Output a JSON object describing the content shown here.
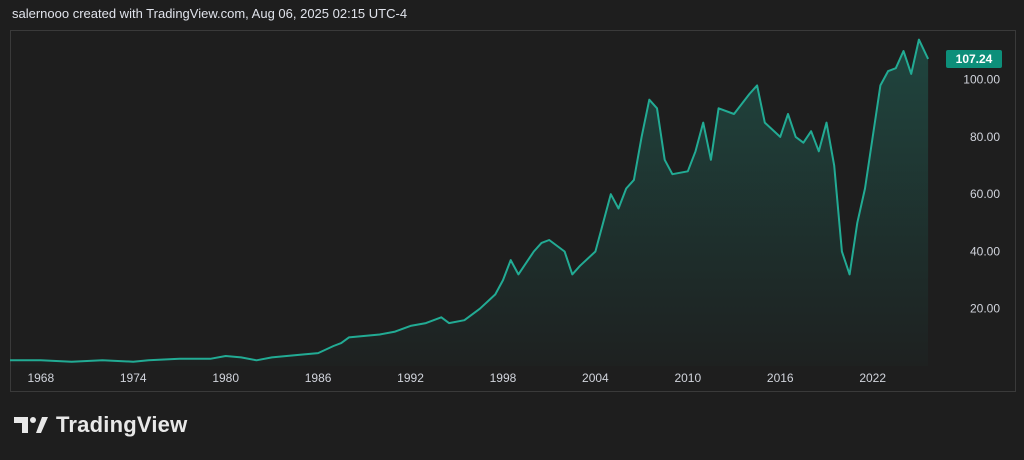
{
  "header": {
    "caption": "salernooo created with TradingView.com, Aug 06, 2025 02:15 UTC-4"
  },
  "brand": {
    "name": "TradingView"
  },
  "colors": {
    "background": "#1e1e1e",
    "line": "#22ab94",
    "badge": "#0d8f7a",
    "text": "#d1d4dc"
  },
  "chart_data": {
    "type": "area",
    "title": "",
    "xlabel": "",
    "ylabel": "",
    "xlim": [
      1966.0,
      2026.5
    ],
    "ylim": [
      0,
      117
    ],
    "y_ticks": [
      "20.00",
      "40.00",
      "60.00",
      "80.00",
      "100.00"
    ],
    "x_ticks": [
      "1968",
      "1974",
      "1980",
      "1986",
      "1992",
      "1998",
      "2004",
      "2010",
      "2016",
      "2022"
    ],
    "grid": false,
    "last_value_label": "107.24",
    "series": [
      {
        "x": [
          1966.0,
          1968.0,
          1970.0,
          1972.0,
          1974.0,
          1975.0,
          1977.0,
          1979.0,
          1980.0,
          1981.0,
          1982.0,
          1983.0,
          1985.0,
          1986.0,
          1987.0,
          1987.5,
          1988.0,
          1990.0,
          1991.0,
          1992.0,
          1993.0,
          1994.0,
          1994.5,
          1995.5,
          1996.5,
          1997.5,
          1998.0,
          1998.5,
          1999.0,
          2000.0,
          2000.5,
          2001.0,
          2002.0,
          2002.5,
          2003.0,
          2004.0,
          2005.0,
          2005.5,
          2006.0,
          2006.5,
          2007.0,
          2007.5,
          2008.0,
          2008.5,
          2009.0,
          2010.0,
          2010.5,
          2011.0,
          2011.5,
          2012.0,
          2013.0,
          2014.0,
          2014.5,
          2015.0,
          2016.0,
          2016.5,
          2017.0,
          2017.5,
          2018.0,
          2018.5,
          2019.0,
          2019.5,
          2020.0,
          2020.5,
          2021.0,
          2021.5,
          2022.0,
          2022.5,
          2023.0,
          2023.5,
          2024.0,
          2024.5,
          2025.0,
          2025.6
        ],
        "values": [
          2,
          2,
          1.5,
          2,
          1.5,
          2,
          2.5,
          2.5,
          3.5,
          3,
          2,
          3,
          4,
          4.5,
          7,
          8,
          10,
          11,
          12,
          14,
          15,
          17,
          15,
          16,
          20,
          25,
          30,
          37,
          32,
          40,
          43,
          44,
          40,
          32,
          35,
          40,
          60,
          55,
          62,
          65,
          80,
          93,
          90,
          72,
          67,
          68,
          75,
          85,
          72,
          90,
          88,
          95,
          98,
          85,
          80,
          88,
          80,
          78,
          82,
          75,
          85,
          70,
          40,
          32,
          50,
          62,
          80,
          98,
          103,
          104,
          110,
          102,
          114,
          107.24
        ]
      }
    ]
  }
}
